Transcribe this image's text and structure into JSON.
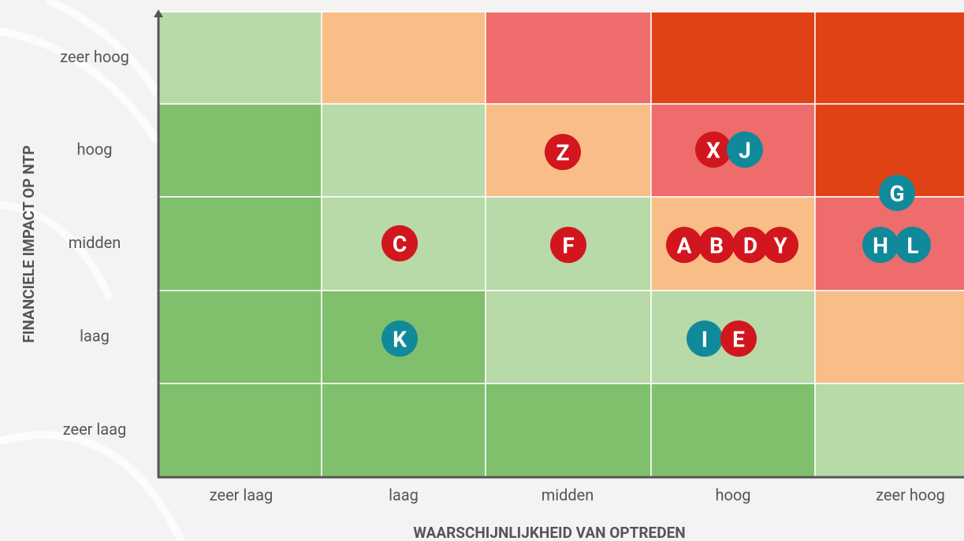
{
  "y_axis": {
    "title": "FINANCIELE IMPACT OP NTP",
    "levels": [
      "zeer hoog",
      "hoog",
      "midden",
      "laag",
      "zeer laag"
    ]
  },
  "x_axis": {
    "title": "WAARSCHIJNLIJKHEID VAN OPTREDEN",
    "levels": [
      "zeer laag",
      "laag",
      "midden",
      "hoog",
      "zeer hoog"
    ]
  },
  "cells": [
    [
      "#b8d9a8",
      "#f9bd87",
      "#ee6c6c",
      "#e04216",
      "#e04216"
    ],
    [
      "#80bf6b",
      "#b8d9a8",
      "#f9bd87",
      "#ee6c6c",
      "#e04216"
    ],
    [
      "#80bf6b",
      "#b8d9a8",
      "#b8d9a8",
      "#f9bd87",
      "#ee6c6c"
    ],
    [
      "#80bf6b",
      "#80bf6b",
      "#b8d9a8",
      "#b8d9a8",
      "#f9bd87"
    ],
    [
      "#80bf6b",
      "#80bf6b",
      "#80bf6b",
      "#80bf6b",
      "#b8d9a8"
    ]
  ],
  "markers": [
    {
      "label": "Z",
      "color": "#d2161e"
    },
    {
      "label": "X",
      "color": "#d2161e"
    },
    {
      "label": "J",
      "color": "#108a9a"
    },
    {
      "label": "G",
      "color": "#108a9a"
    },
    {
      "label": "C",
      "color": "#d2161e"
    },
    {
      "label": "F",
      "color": "#d2161e"
    },
    {
      "label": "A",
      "color": "#d2161e"
    },
    {
      "label": "B",
      "color": "#d2161e"
    },
    {
      "label": "D",
      "color": "#d2161e"
    },
    {
      "label": "Y",
      "color": "#d2161e"
    },
    {
      "label": "H",
      "color": "#108a9a"
    },
    {
      "label": "L",
      "color": "#108a9a"
    },
    {
      "label": "K",
      "color": "#108a9a"
    },
    {
      "label": "I",
      "color": "#108a9a"
    },
    {
      "label": "E",
      "color": "#d2161e"
    }
  ]
}
